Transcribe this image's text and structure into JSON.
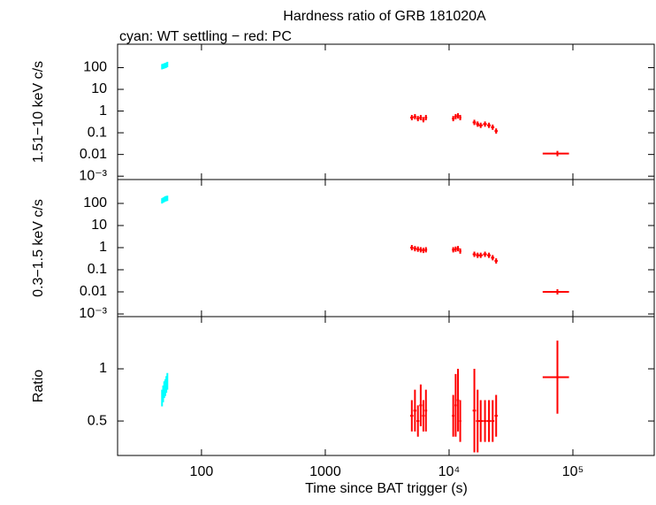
{
  "chart_data": [
    {
      "type": "scatter",
      "title": "Hardness ratio of GRB 181020A",
      "subtitle": "cyan: WT settling − red: PC",
      "ylabel": "1.51−10 keV c/s",
      "log_x": true,
      "log_y": true,
      "xlim": [
        21,
        454000
      ],
      "xticks": [
        100,
        1000,
        {
          "value": 10000,
          "label": "10⁴"
        },
        {
          "value": 100000,
          "label": "10⁵"
        }
      ],
      "ylim": [
        0.0007,
        1200
      ],
      "yticks": [
        100,
        10,
        1,
        0.1,
        0.01,
        {
          "value": 0.001,
          "label": "10⁻³"
        }
      ],
      "series": [
        {
          "color": "#00ffff",
          "x": [
            48,
            49,
            50,
            51,
            52,
            53
          ],
          "xerr": [
            0.5,
            0.5,
            0.5,
            0.5,
            0.5,
            0.5
          ],
          "values": [
            110,
            115,
            120,
            125,
            130,
            140
          ]
        },
        {
          "color": "#ff0000",
          "x": [
            5000,
            5300,
            5600,
            5900,
            6200,
            6500,
            10800,
            11300,
            11800,
            12300,
            16000,
            17000,
            18000,
            19500,
            21000,
            22500,
            24000,
            75000
          ],
          "xerr": [
            150,
            150,
            150,
            150,
            150,
            150,
            250,
            250,
            250,
            250,
            500,
            500,
            700,
            700,
            700,
            700,
            700,
            18000
          ],
          "values": [
            0.5,
            0.55,
            0.45,
            0.5,
            0.4,
            0.5,
            0.45,
            0.55,
            0.6,
            0.5,
            0.3,
            0.25,
            0.22,
            0.25,
            0.22,
            0.18,
            0.12,
            0.011
          ]
        }
      ]
    },
    {
      "type": "scatter",
      "ylabel": "0.3−1.5 keV c/s",
      "log_x": true,
      "log_y": true,
      "xlim": [
        21,
        454000
      ],
      "xticks": [
        100,
        1000,
        10000,
        100000
      ],
      "ylim": [
        0.00076,
        1200
      ],
      "yticks": [
        100,
        10,
        1,
        0.1,
        0.01,
        {
          "value": 0.001,
          "label": "10⁻³"
        }
      ],
      "series": [
        {
          "color": "#00ffff",
          "x": [
            48,
            49,
            50,
            51,
            52,
            53
          ],
          "xerr": [
            0.5,
            0.5,
            0.5,
            0.5,
            0.5,
            0.5
          ],
          "values": [
            130,
            140,
            150,
            160,
            165,
            170
          ]
        },
        {
          "color": "#ff0000",
          "x": [
            5000,
            5300,
            5600,
            5900,
            6200,
            6500,
            10800,
            11300,
            11800,
            12300,
            16000,
            17000,
            18000,
            19500,
            21000,
            22500,
            24000,
            75000
          ],
          "xerr": [
            150,
            150,
            150,
            150,
            150,
            150,
            250,
            250,
            250,
            250,
            500,
            500,
            700,
            700,
            700,
            700,
            700,
            18000
          ],
          "values": [
            1.0,
            0.9,
            0.85,
            0.8,
            0.75,
            0.8,
            0.8,
            0.85,
            0.9,
            0.7,
            0.5,
            0.45,
            0.45,
            0.5,
            0.45,
            0.35,
            0.25,
            0.01
          ]
        }
      ]
    },
    {
      "type": "scatter",
      "ylabel": "Ratio",
      "xlabel": "Time since BAT trigger (s)",
      "log_x": true,
      "log_y": false,
      "xlim": [
        21,
        454000
      ],
      "xticks": [
        100,
        1000,
        {
          "value": 10000,
          "label": "10⁴"
        },
        {
          "value": 100000,
          "label": "10⁵"
        }
      ],
      "ylim": [
        0.17,
        1.5
      ],
      "yticks": [
        0.5,
        1
      ],
      "series": [
        {
          "color": "#00ffff",
          "x": [
            48,
            49,
            50,
            51,
            52,
            53
          ],
          "xerr": [
            0.5,
            0.5,
            0.5,
            0.5,
            0.5,
            0.5
          ],
          "values": [
            0.72,
            0.76,
            0.8,
            0.82,
            0.85,
            0.88
          ],
          "yerr": [
            0.08,
            0.08,
            0.08,
            0.08,
            0.08,
            0.08
          ]
        },
        {
          "color": "#ff0000",
          "x": [
            5000,
            5300,
            5600,
            5900,
            6200,
            6500,
            10800,
            11300,
            11800,
            12300,
            16000,
            17000,
            18000,
            19500,
            21000,
            22500,
            24000,
            75000
          ],
          "xerr": [
            150,
            150,
            150,
            150,
            150,
            150,
            250,
            250,
            250,
            250,
            500,
            500,
            700,
            700,
            700,
            700,
            700,
            18000
          ],
          "values": [
            0.55,
            0.6,
            0.5,
            0.65,
            0.55,
            0.6,
            0.55,
            0.65,
            0.7,
            0.5,
            0.6,
            0.5,
            0.5,
            0.5,
            0.5,
            0.5,
            0.55,
            0.92
          ],
          "yerr": [
            0.15,
            0.2,
            0.15,
            0.2,
            0.15,
            0.2,
            0.2,
            0.3,
            0.3,
            0.2,
            0.4,
            0.3,
            0.2,
            0.2,
            0.2,
            0.2,
            0.2,
            0.35
          ]
        }
      ]
    }
  ]
}
